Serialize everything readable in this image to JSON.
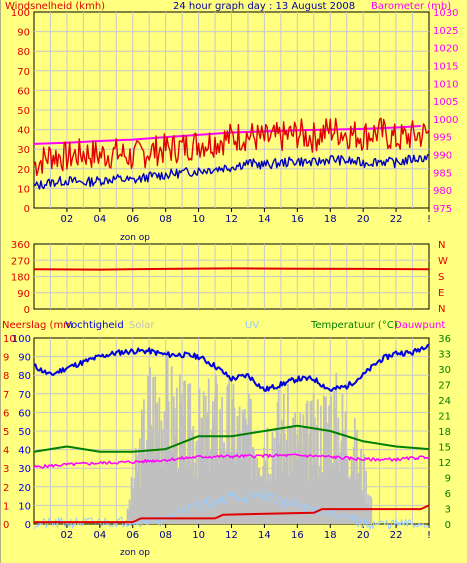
{
  "header": {
    "title": "24 hour graph day : 13 August 2008",
    "left_label": "Windsnelheid (kmh)",
    "right_label": "Barometer (mb)"
  },
  "mid": {
    "dir_letters": [
      "N",
      "W",
      "S",
      "E",
      "N"
    ]
  },
  "bottom_header": {
    "neerslag": "Neerslag (mm",
    "vochtigheid": "Vochtigheid",
    "solar": "Solar",
    "uv": "UV",
    "temperatuur": "Temperatuur (°C)",
    "dauwpunt": "Dauwpunt"
  },
  "x_ticks": [
    "02",
    "04",
    "06",
    "08",
    "10",
    "12",
    "14",
    "16",
    "18",
    "20",
    "22",
    "!"
  ],
  "sunrise_label": "zon op",
  "colors": {
    "wind_avg": "#0000c0",
    "wind_gust": "#e00000",
    "barometer": "#ff00ff",
    "direction": "#e00000",
    "humidity": "#0000e0",
    "temperature": "#008000",
    "dewpoint": "#ff00ff",
    "solar": "#c0c0c0",
    "uv": "#99ccff",
    "rain": "#e00000"
  },
  "chart_data": [
    {
      "type": "line",
      "panel": "wind-barometer",
      "title": "24 hour graph day : 13 August 2008",
      "x_range_hours": [
        0,
        24
      ],
      "y_left": {
        "label": "Windsnelheid (kmh)",
        "ticks": [
          0,
          10,
          20,
          30,
          40,
          50,
          60,
          70,
          80,
          90,
          100
        ]
      },
      "y_right": {
        "label": "Barometer (mb)",
        "ticks": [
          975,
          980,
          985,
          990,
          995,
          1000,
          1005,
          1010,
          1015,
          1020,
          1025,
          1030
        ]
      },
      "series": [
        {
          "axis": "left",
          "hours": [
            0,
            1,
            2,
            3,
            4,
            5,
            6,
            7,
            8,
            9,
            10,
            11,
            12,
            13,
            14,
            15,
            16,
            17,
            18,
            19,
            20,
            21,
            22,
            23,
            24
          ],
          "values": [
            11,
            13,
            14,
            13,
            14,
            15,
            14,
            16,
            17,
            18,
            19,
            20,
            21,
            23,
            22,
            23,
            24,
            23,
            25,
            24,
            23,
            24,
            23,
            25,
            26
          ]
        },
        {
          "axis": "left",
          "hours": [
            0,
            1,
            2,
            3,
            4,
            5,
            6,
            7,
            8,
            9,
            10,
            11,
            12,
            13,
            14,
            15,
            16,
            17,
            18,
            19,
            20,
            21,
            22,
            23,
            24
          ],
          "values": [
            22,
            27,
            26,
            28,
            27,
            28,
            26,
            29,
            30,
            31,
            33,
            34,
            36,
            37,
            35,
            36,
            38,
            36,
            40,
            38,
            37,
            39,
            35,
            37,
            38
          ]
        },
        {
          "axis": "right",
          "hours": [
            0,
            2,
            4,
            6,
            8,
            10,
            12,
            14,
            16,
            18,
            20,
            22,
            23.5
          ],
          "values": [
            993,
            993.3,
            993.8,
            994.2,
            994.9,
            995.5,
            996.2,
            996.5,
            996.8,
            997,
            997.2,
            997.6,
            998
          ]
        }
      ]
    },
    {
      "type": "line",
      "panel": "wind-direction",
      "x_range_hours": [
        0,
        24
      ],
      "y_left": {
        "ticks": [
          0,
          90,
          180,
          270,
          360
        ]
      },
      "series": [
        {
          "hours": [
            0,
            4,
            8,
            12,
            16,
            20,
            24
          ],
          "values": [
            220,
            218,
            222,
            225,
            223,
            222,
            220
          ]
        }
      ]
    },
    {
      "type": "line",
      "panel": "weather",
      "x_range_hours": [
        0,
        24
      ],
      "y_left_neerslag": {
        "ticks": [
          0,
          1,
          2,
          3,
          4,
          5,
          6,
          7,
          8,
          9,
          10
        ]
      },
      "y_left_humidity": {
        "ticks": [
          0,
          10,
          20,
          30,
          40,
          50,
          60,
          70,
          80,
          90,
          100
        ]
      },
      "y_right_temperature": {
        "ticks": [
          0,
          3,
          6,
          9,
          12,
          15,
          18,
          21,
          24,
          27,
          30,
          33,
          36
        ]
      },
      "series": [
        {
          "hours": [
            0,
            1,
            2,
            3,
            4,
            5,
            6,
            7,
            8,
            9,
            10,
            11,
            12,
            13,
            14,
            15,
            16,
            17,
            18,
            19,
            20,
            21,
            22,
            23,
            24
          ],
          "values": [
            85,
            80,
            84,
            87,
            90,
            92,
            93,
            93,
            91,
            91,
            90,
            85,
            78,
            80,
            72,
            75,
            78,
            78,
            72,
            74,
            80,
            88,
            92,
            92,
            97
          ]
        },
        {
          "hours": [
            0,
            2,
            4,
            6,
            8,
            10,
            12,
            14,
            16,
            18,
            20,
            22,
            24
          ],
          "values": [
            14,
            15,
            14,
            14,
            14.5,
            17,
            17,
            18,
            19,
            18,
            16,
            15,
            14.5
          ]
        },
        {
          "hours": [
            0,
            2,
            4,
            6,
            8,
            10,
            12,
            14,
            16,
            18,
            20,
            22,
            24
          ],
          "values": [
            11,
            11.5,
            11.8,
            12,
            12.4,
            13,
            13.1,
            13.2,
            13.3,
            13,
            12.5,
            12.5,
            13
          ]
        },
        {
          "hours": [
            0,
            5.5,
            6,
            7,
            8,
            9,
            10,
            11,
            12,
            13,
            14,
            15,
            16,
            17,
            18,
            19,
            20,
            20.5,
            21,
            24
          ],
          "values": [
            0,
            0,
            30,
            85,
            85,
            70,
            65,
            75,
            70,
            62,
            60,
            70,
            58,
            62,
            78,
            65,
            35,
            15,
            0,
            0
          ]
        },
        {
          "hours": [
            0,
            8,
            9,
            10,
            11,
            12,
            13,
            14,
            15,
            16,
            17,
            18,
            19,
            20,
            24
          ],
          "values": [
            0,
            2,
            8,
            10,
            12,
            15,
            14,
            16,
            12,
            10,
            8,
            6,
            3,
            0,
            0
          ]
        },
        {
          "hours": [
            0,
            6,
            6.5,
            11,
            11.5,
            17,
            17.5,
            23.5,
            24
          ],
          "values": [
            0.1,
            0.1,
            0.3,
            0.3,
            0.5,
            0.6,
            0.8,
            0.8,
            1
          ]
        }
      ]
    }
  ]
}
